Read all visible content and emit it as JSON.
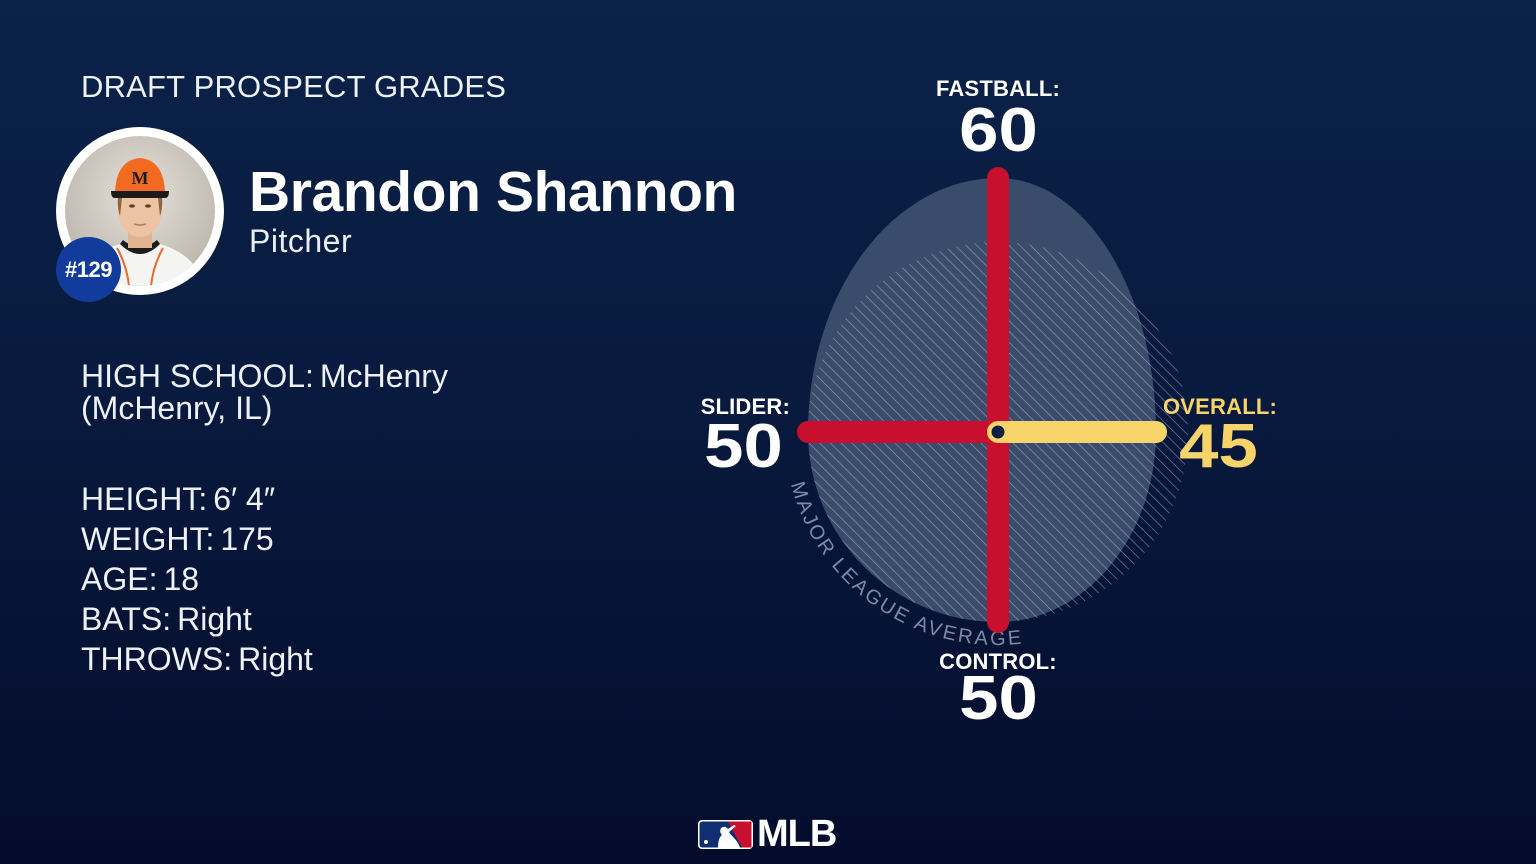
{
  "header": {
    "title": "DRAFT PROSPECT GRADES"
  },
  "player": {
    "name": "Brandon Shannon",
    "position": "Pitcher",
    "rank_badge": "#129",
    "photo_icon": "player-headshot",
    "cap_letter": "M"
  },
  "bio": {
    "high_school_label": "HIGH SCHOOL:",
    "high_school_value": "McHenry",
    "high_school_location": "(McHenry, IL)"
  },
  "stats": [
    {
      "label": "HEIGHT:",
      "value": "6′ 4″"
    },
    {
      "label": "WEIGHT:",
      "value": "175"
    },
    {
      "label": "AGE:",
      "value": "18"
    },
    {
      "label": "BATS:",
      "value": "Right"
    },
    {
      "label": "THROWS:",
      "value": "Right"
    }
  ],
  "grades": {
    "fastball_label": "FASTBALL:",
    "slider_label": "SLIDER:",
    "overall_label": "OVERALL:",
    "control_label": "CONTROL:",
    "reference_label": "MAJOR LEAGUE AVERAGE"
  },
  "chart_data": {
    "type": "bar",
    "layout": "radial",
    "title": "DRAFT PROSPECT GRADES",
    "categories": [
      "FASTBALL",
      "OVERALL",
      "CONTROL",
      "SLIDER"
    ],
    "values": [
      60,
      45,
      50,
      50
    ],
    "series_colors": [
      "#c8102e",
      "#f6d46a",
      "#c8102e",
      "#c8102e"
    ],
    "reference_line": {
      "value": 50,
      "label": "MAJOR LEAGUE AVERAGE"
    },
    "xlabel": "",
    "ylabel": "",
    "grid": false,
    "legend": "none"
  },
  "colors": {
    "background_top": "#0b2249",
    "background_bottom": "#040c2c",
    "tool_bar": "#c8102e",
    "overall_bar": "#f6d46a",
    "player_shape": "#3a4c6c",
    "badge": "#123c9c"
  },
  "footer": {
    "logo_text": "MLB",
    "logo_icon": "mlb-batter-logo"
  }
}
